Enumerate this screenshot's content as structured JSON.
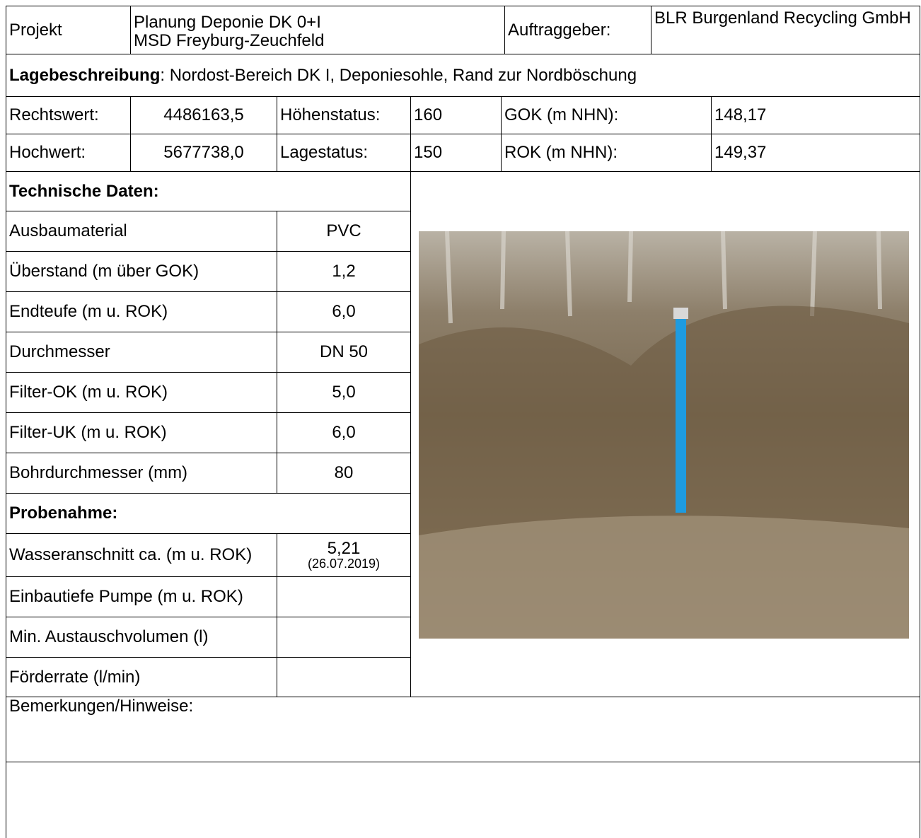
{
  "header": {
    "project_label": "Projekt",
    "project": [
      "Planung Deponie DK 0+I",
      "MSD Freyburg-Zeuchfeld"
    ],
    "client_label": "Auftraggeber:",
    "client": "BLR Burgenland Recycling GmbH"
  },
  "location": {
    "label": "Lagebeschreibung",
    "text": ": Nordost-Bereich DK I, Deponiesohle, Rand zur Nordböschung"
  },
  "coordinates": {
    "rows": [
      [
        "Rechtswert:",
        "4486163,5",
        "Höhenstatus:",
        "160",
        "GOK (m NHN):",
        "148,17"
      ],
      [
        "Hochwert:",
        "5677738,0",
        "Lagestatus:",
        "150",
        "ROK (m NHN):",
        "149,37"
      ]
    ]
  },
  "technical": {
    "title": "Technische Daten:",
    "rows": [
      [
        "Ausbaumaterial",
        "PVC"
      ],
      [
        "Überstand (m über GOK)",
        "1,2"
      ],
      [
        "Endteufe (m u. ROK)",
        "6,0"
      ],
      [
        "Durchmesser",
        "DN 50"
      ],
      [
        "Filter-OK (m u. ROK)",
        "5,0"
      ],
      [
        "Filter-UK (m u. ROK)",
        "6,0"
      ],
      [
        "Bohrdurchmesser (mm)",
        "80"
      ]
    ]
  },
  "sampling": {
    "title": "Probenahme:",
    "water_label": "Wasseranschnitt ca. (m u. ROK)",
    "water_value": "5,21",
    "water_date": "(26.07.2019)",
    "rows": [
      "Einbautiefe Pumpe (m u. ROK)",
      "Min. Austauschvolumen (l)",
      "Förderrate (l/min)"
    ]
  },
  "remarks": {
    "label": "Bemerkungen/Hinweise:"
  }
}
